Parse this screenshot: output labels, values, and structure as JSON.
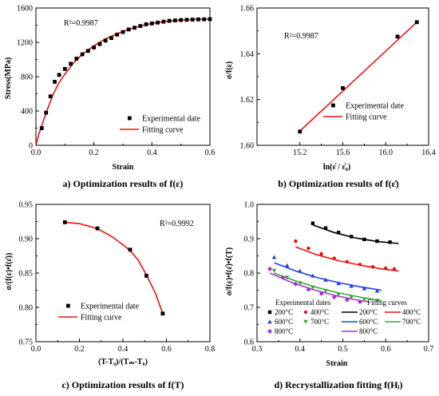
{
  "captions": {
    "a": "a) Optimization results of f(ε)",
    "b": "b) Optimization results of f(ε̇)",
    "c": "c) Optimization results of f(T)",
    "d": "d) Recrystallization fitting f(Hᵢ)"
  },
  "chart_data": [
    {
      "id": "a",
      "type": "scatter",
      "xlabel": "Strain",
      "ylabel": "Stress(MPa)",
      "xlim": [
        0,
        0.6
      ],
      "ylim": [
        0,
        1600
      ],
      "xticks": [
        "0.0",
        "0.2",
        "0.4",
        "0.6"
      ],
      "yticks": [
        "0",
        "400",
        "800",
        "1200",
        "1600"
      ],
      "annotation": "R²=0.9987",
      "legend": {
        "position": "bottom-right",
        "entries": [
          "Experimental date",
          "Fitting curve"
        ]
      },
      "series": [
        {
          "name": "Experimental date",
          "kind": "markers",
          "marker": "square",
          "color": "#000000",
          "x": [
            0.02,
            0.035,
            0.05,
            0.065,
            0.08,
            0.1,
            0.12,
            0.14,
            0.16,
            0.18,
            0.2,
            0.22,
            0.24,
            0.26,
            0.28,
            0.3,
            0.32,
            0.34,
            0.36,
            0.38,
            0.4,
            0.42,
            0.44,
            0.46,
            0.48,
            0.5,
            0.52,
            0.54,
            0.56,
            0.58,
            0.6
          ],
          "y": [
            200,
            380,
            570,
            740,
            820,
            890,
            950,
            1010,
            1060,
            1100,
            1140,
            1180,
            1220,
            1250,
            1290,
            1320,
            1350,
            1370,
            1390,
            1410,
            1420,
            1430,
            1440,
            1450,
            1455,
            1460,
            1462,
            1465,
            1467,
            1468,
            1470
          ]
        },
        {
          "name": "Fitting curve",
          "kind": "line",
          "color": "#ee1111",
          "x": [
            0,
            0.01,
            0.02,
            0.04,
            0.06,
            0.08,
            0.1,
            0.13,
            0.16,
            0.2,
            0.24,
            0.28,
            0.32,
            0.36,
            0.4,
            0.45,
            0.5,
            0.55,
            0.6
          ],
          "y": [
            0,
            130,
            230,
            420,
            600,
            730,
            830,
            960,
            1060,
            1160,
            1240,
            1300,
            1350,
            1390,
            1420,
            1445,
            1460,
            1467,
            1470
          ]
        }
      ]
    },
    {
      "id": "b",
      "type": "scatter",
      "xlabel": "ln(ε̇ / ε̇₀)",
      "ylabel": "σ/f(ε)",
      "xlim": [
        14.8,
        16.4
      ],
      "ylim": [
        1.6,
        1.66
      ],
      "xticks": [
        "15.2",
        "15.6",
        "16.0",
        "16.4"
      ],
      "yticks": [
        "1.60",
        "1.62",
        "1.64",
        "1.66"
      ],
      "annotation": "R²=0.9987",
      "legend": {
        "position": "bottom-right",
        "entries": [
          "Experimental date",
          "Fitting curve"
        ]
      },
      "series": [
        {
          "name": "Experimental date",
          "kind": "markers",
          "marker": "square",
          "color": "#000000",
          "x": [
            15.2,
            15.6,
            16.11,
            16.29
          ],
          "y": [
            1.606,
            1.625,
            1.6475,
            1.6538
          ]
        },
        {
          "name": "Fitting curve",
          "kind": "line",
          "color": "#ee1111",
          "x": [
            15.2,
            16.29
          ],
          "y": [
            1.6062,
            1.6538
          ]
        }
      ]
    },
    {
      "id": "c",
      "type": "scatter",
      "xlabel": "(T-T₀)/(Tₘ-T₀)",
      "ylabel": "σ/(f(ε)•f(ε̇))",
      "xlim": [
        0,
        0.8
      ],
      "ylim": [
        0.75,
        0.95
      ],
      "xticks": [
        "0.0",
        "0.2",
        "0.4",
        "0.6",
        "0.8"
      ],
      "yticks": [
        "0.75",
        "0.80",
        "0.85",
        "0.90",
        "0.95"
      ],
      "annotation": "R²=0.9992",
      "legend": {
        "position": "bottom-left",
        "entries": [
          "Experimental date",
          "Fitting curve"
        ]
      },
      "series": [
        {
          "name": "Experimental date",
          "kind": "markers",
          "marker": "square",
          "color": "#000000",
          "x": [
            0.133,
            0.283,
            0.433,
            0.508,
            0.583
          ],
          "y": [
            0.924,
            0.915,
            0.884,
            0.846,
            0.791
          ]
        },
        {
          "name": "Fitting curve",
          "kind": "line",
          "color": "#ee1111",
          "x": [
            0.13,
            0.2,
            0.28,
            0.35,
            0.43,
            0.47,
            0.51,
            0.55,
            0.583
          ],
          "y": [
            0.924,
            0.922,
            0.915,
            0.903,
            0.884,
            0.869,
            0.846,
            0.82,
            0.791
          ]
        }
      ]
    },
    {
      "id": "d",
      "type": "scatter",
      "xlabel": "Strain",
      "ylabel": "σ/f(ε)•f(ε̇)•f(T)",
      "xlim": [
        0.3,
        0.7
      ],
      "ylim": [
        0.6,
        1.0
      ],
      "xticks": [
        "0.3",
        "0.4",
        "0.5",
        "0.6",
        "0.7"
      ],
      "yticks": [
        "0.6",
        "0.7",
        "0.8",
        "0.9",
        "1.0"
      ],
      "legend": {
        "position": "bottom",
        "group_titles": [
          "Experimental dates",
          "Fitting curves"
        ],
        "entries": [
          "200°C",
          "400°C",
          "600°C",
          "700°C",
          "800°C",
          "200°C",
          "400°C",
          "600°C",
          "700°C",
          "800°C"
        ]
      },
      "series": [
        {
          "name": "200°C",
          "kind": "markers",
          "marker": "square",
          "color": "#000000",
          "x": [
            0.43,
            0.46,
            0.49,
            0.52,
            0.55,
            0.58,
            0.61
          ],
          "y": [
            0.945,
            0.931,
            0.918,
            0.906,
            0.898,
            0.893,
            0.89
          ]
        },
        {
          "name": "400°C",
          "kind": "markers",
          "marker": "circle",
          "color": "#ee1111",
          "x": [
            0.39,
            0.42,
            0.45,
            0.48,
            0.51,
            0.54,
            0.57,
            0.6,
            0.62
          ],
          "y": [
            0.893,
            0.872,
            0.856,
            0.843,
            0.833,
            0.825,
            0.818,
            0.814,
            0.812
          ]
        },
        {
          "name": "600°C",
          "kind": "markers",
          "marker": "triangle-up",
          "color": "#1f3fe0",
          "x": [
            0.34,
            0.37,
            0.4,
            0.43,
            0.46,
            0.49,
            0.52,
            0.55,
            0.58
          ],
          "y": [
            0.846,
            0.822,
            0.806,
            0.792,
            0.78,
            0.77,
            0.762,
            0.755,
            0.748
          ]
        },
        {
          "name": "700°C",
          "kind": "markers",
          "marker": "triangle-down",
          "color": "#3aa535",
          "x": [
            0.34,
            0.37,
            0.4,
            0.43,
            0.46,
            0.49,
            0.52,
            0.55,
            0.58
          ],
          "y": [
            0.807,
            0.787,
            0.771,
            0.758,
            0.748,
            0.738,
            0.73,
            0.724,
            0.72
          ]
        },
        {
          "name": "800°C",
          "kind": "markers",
          "marker": "diamond",
          "color": "#a333cc",
          "x": [
            0.33,
            0.36,
            0.39,
            0.42,
            0.45,
            0.48,
            0.51,
            0.54
          ],
          "y": [
            0.812,
            0.787,
            0.768,
            0.752,
            0.74,
            0.73,
            0.722,
            0.716
          ]
        },
        {
          "name": "200°C",
          "kind": "line",
          "color": "#000000",
          "x": [
            0.43,
            0.48,
            0.53,
            0.58,
            0.63
          ],
          "y": [
            0.94,
            0.918,
            0.902,
            0.892,
            0.886
          ]
        },
        {
          "name": "400°C",
          "kind": "line",
          "color": "#ee1111",
          "x": [
            0.39,
            0.44,
            0.49,
            0.54,
            0.59,
            0.63
          ],
          "y": [
            0.876,
            0.853,
            0.836,
            0.823,
            0.812,
            0.806
          ]
        },
        {
          "name": "600°C",
          "kind": "line",
          "color": "#1f3fe0",
          "x": [
            0.34,
            0.39,
            0.44,
            0.49,
            0.54,
            0.59
          ],
          "y": [
            0.83,
            0.806,
            0.787,
            0.772,
            0.76,
            0.75
          ]
        },
        {
          "name": "700°C",
          "kind": "line",
          "color": "#3aa535",
          "x": [
            0.34,
            0.39,
            0.44,
            0.49,
            0.54,
            0.59
          ],
          "y": [
            0.8,
            0.777,
            0.758,
            0.742,
            0.73,
            0.719
          ]
        },
        {
          "name": "800°C",
          "kind": "line",
          "color": "#a333cc",
          "x": [
            0.33,
            0.38,
            0.43,
            0.48,
            0.53,
            0.56
          ],
          "y": [
            0.8,
            0.773,
            0.752,
            0.735,
            0.722,
            0.716
          ]
        }
      ]
    }
  ]
}
